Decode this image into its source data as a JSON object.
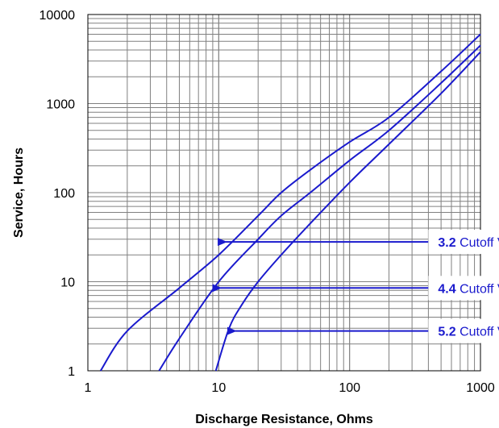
{
  "chart_data": {
    "type": "line",
    "title": "",
    "xlabel": "Discharge Resistance, Ohms",
    "ylabel": "Service, Hours",
    "x_scale": "log",
    "y_scale": "log",
    "xlim": [
      1,
      1000
    ],
    "ylim": [
      1,
      10000
    ],
    "grid": true,
    "x_ticks": [
      "1",
      "10",
      "100",
      "1000"
    ],
    "y_ticks": [
      "1",
      "10",
      "100",
      "1000",
      "10000"
    ],
    "line_color": "#1a1acd",
    "series": [
      {
        "cutoff_value": "3.2",
        "x": [
          1.25,
          2,
          5,
          10,
          20,
          30,
          50,
          100,
          200,
          500,
          1000
        ],
        "y": [
          1,
          2.8,
          8.5,
          20,
          55,
          100,
          180,
          370,
          700,
          2300,
          6000
        ]
      },
      {
        "cutoff_value": "4.4",
        "x": [
          3.5,
          5,
          10,
          20,
          30,
          50,
          100,
          200,
          500,
          1000
        ],
        "y": [
          1,
          2.3,
          10,
          30,
          55,
          100,
          230,
          500,
          1700,
          4500
        ]
      },
      {
        "cutoff_value": "5.2",
        "x": [
          9.5,
          12,
          15,
          20,
          30,
          50,
          100,
          200,
          500,
          1000
        ],
        "y": [
          1,
          3,
          5.5,
          10,
          20,
          45,
          130,
          350,
          1300,
          3800
        ]
      }
    ],
    "annotations": [
      {
        "bold": "3.2",
        "text": " Cutoff Voltage",
        "arrow_tip": [
          11,
          28
        ],
        "arrow_tail": [
          400,
          28
        ]
      },
      {
        "bold": "4.4",
        "text": " Cutoff Voltage",
        "arrow_tip": [
          10,
          8.5
        ],
        "arrow_tail": [
          400,
          8.5
        ]
      },
      {
        "bold": "5.2",
        "text": " Cutoff Voltage",
        "arrow_tip": [
          13,
          2.8
        ],
        "arrow_tail": [
          400,
          2.8
        ]
      }
    ]
  }
}
